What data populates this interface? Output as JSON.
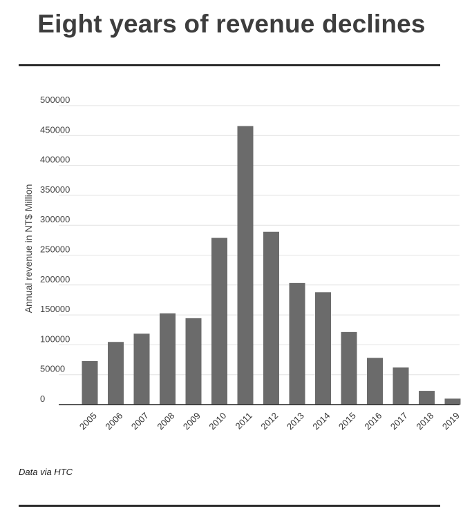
{
  "title": "Eight years of revenue declines",
  "source": "Data via HTC",
  "chart_data": {
    "type": "bar",
    "title": "Eight years of revenue declines",
    "xlabel": "",
    "ylabel": "Annual revenue in NT$ Million",
    "ylim": [
      0,
      500000
    ],
    "y_ticks": [
      0,
      50000,
      100000,
      150000,
      200000,
      250000,
      300000,
      350000,
      400000,
      450000,
      500000
    ],
    "categories": [
      "2005",
      "2006",
      "2007",
      "2008",
      "2009",
      "2010",
      "2011",
      "2012",
      "2013",
      "2014",
      "2015",
      "2016",
      "2017",
      "2018",
      "2019"
    ],
    "values": [
      72800,
      104800,
      118600,
      152600,
      144500,
      278800,
      465800,
      289000,
      203400,
      187900,
      121400,
      78200,
      62000,
      23000,
      10000
    ],
    "bar_color": "#6b6b6b",
    "grid": true,
    "legend": "none"
  }
}
